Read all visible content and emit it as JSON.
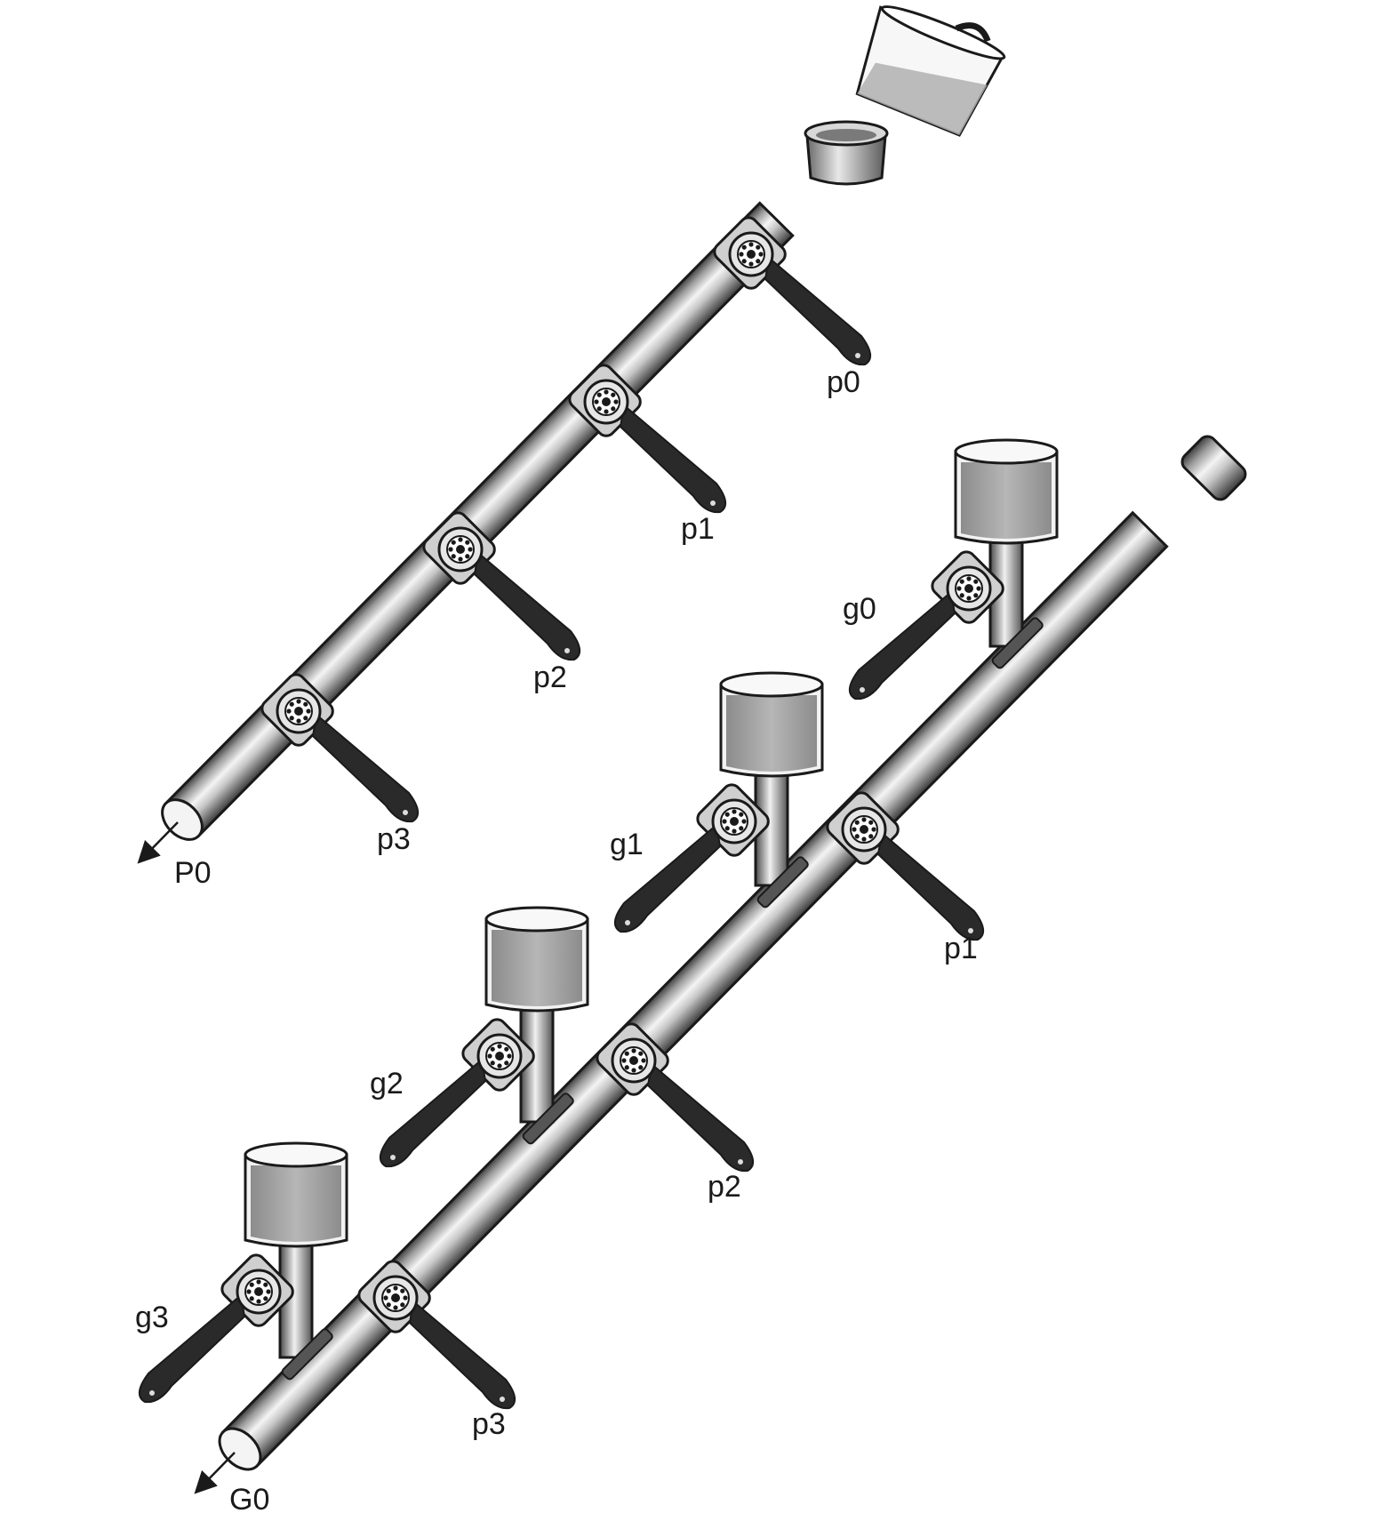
{
  "propagate_pipe": {
    "valves": [
      {
        "label": "p0"
      },
      {
        "label": "p1"
      },
      {
        "label": "p2"
      },
      {
        "label": "p3"
      }
    ],
    "output_label": "P0"
  },
  "generate_pipe": {
    "valves": [
      {
        "label": "p1"
      },
      {
        "label": "p2"
      },
      {
        "label": "p3"
      }
    ],
    "containers": [
      {
        "label": "g0"
      },
      {
        "label": "g1"
      },
      {
        "label": "g2"
      },
      {
        "label": "g3"
      }
    ],
    "output_label": "G0"
  },
  "colors": {
    "line": "#1a1a1a",
    "pipe_light": "#f4f4f4",
    "pipe_mid": "#b8b8b8",
    "pipe_dark": "#4a4a4a",
    "water": "#aaaaaa",
    "handle": "#2a2a2a"
  }
}
